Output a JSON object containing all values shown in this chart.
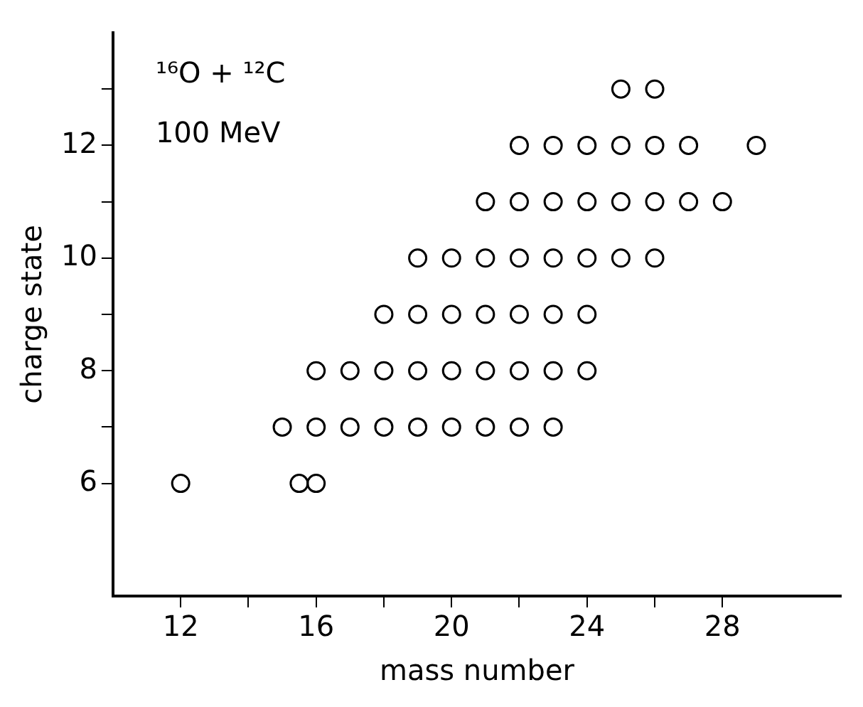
{
  "chart_data": {
    "type": "scatter",
    "xlabel": "mass number",
    "ylabel": "charge state",
    "annotations": [
      "¹⁶O + ¹²C",
      "100 MeV"
    ],
    "x": [
      12,
      15.5,
      16,
      15,
      16,
      17,
      18,
      19,
      20,
      21,
      22,
      23,
      16,
      17,
      18,
      19,
      20,
      21,
      22,
      23,
      24,
      18,
      19,
      20,
      21,
      22,
      23,
      24,
      19,
      20,
      21,
      22,
      23,
      24,
      25,
      26,
      21,
      22,
      23,
      24,
      25,
      26,
      27,
      28,
      22,
      23,
      24,
      25,
      26,
      27,
      29,
      25,
      26
    ],
    "values": [
      6,
      6,
      6,
      7,
      7,
      7,
      7,
      7,
      7,
      7,
      7,
      7,
      8,
      8,
      8,
      8,
      8,
      8,
      8,
      8,
      8,
      9,
      9,
      9,
      9,
      9,
      9,
      9,
      10,
      10,
      10,
      10,
      10,
      10,
      10,
      10,
      11,
      11,
      11,
      11,
      11,
      11,
      11,
      11,
      12,
      12,
      12,
      12,
      12,
      12,
      12,
      13,
      13
    ],
    "color": "#000000",
    "marker": "circle",
    "xlim": [
      10,
      31.5
    ],
    "xticks": [
      12,
      {
        "value": 14,
        "label": null
      },
      16,
      {
        "value": 18,
        "label": null
      },
      20,
      {
        "value": 22,
        "label": null
      },
      24,
      {
        "value": 26,
        "label": null
      },
      28
    ],
    "ylim": [
      4,
      14
    ],
    "yticks": [
      6,
      {
        "value": 7,
        "label": null
      },
      8,
      {
        "value": 9,
        "label": null
      },
      10,
      {
        "value": 11,
        "label": null
      },
      12,
      {
        "value": 13,
        "label": null
      }
    ],
    "grid": false,
    "legend": false
  }
}
